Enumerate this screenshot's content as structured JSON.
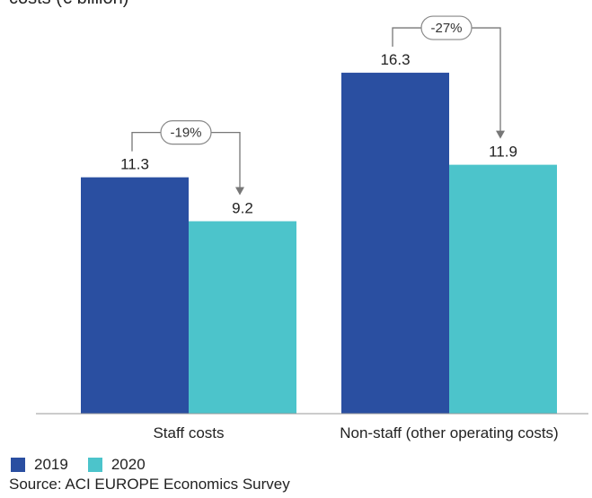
{
  "chart_data": {
    "type": "bar",
    "title": "costs (€ billion)",
    "categories": [
      "Staff costs",
      "Non-staff (other operating costs)"
    ],
    "series": [
      {
        "name": "2019",
        "color": "#2a4fa1",
        "values": [
          11.3,
          16.3
        ],
        "labels": [
          "11.3",
          "16.3"
        ]
      },
      {
        "name": "2020",
        "color": "#4cc4cb",
        "values": [
          9.2,
          11.9
        ],
        "labels": [
          "9.2",
          "11.9"
        ]
      }
    ],
    "changes": [
      "-19%",
      "-27%"
    ],
    "ylim": [
      0,
      17.5
    ],
    "xlabel": "",
    "ylabel": "",
    "grid": false,
    "legend": "bottom-left"
  },
  "source": "Source: ACI EUROPE Economics Survey"
}
